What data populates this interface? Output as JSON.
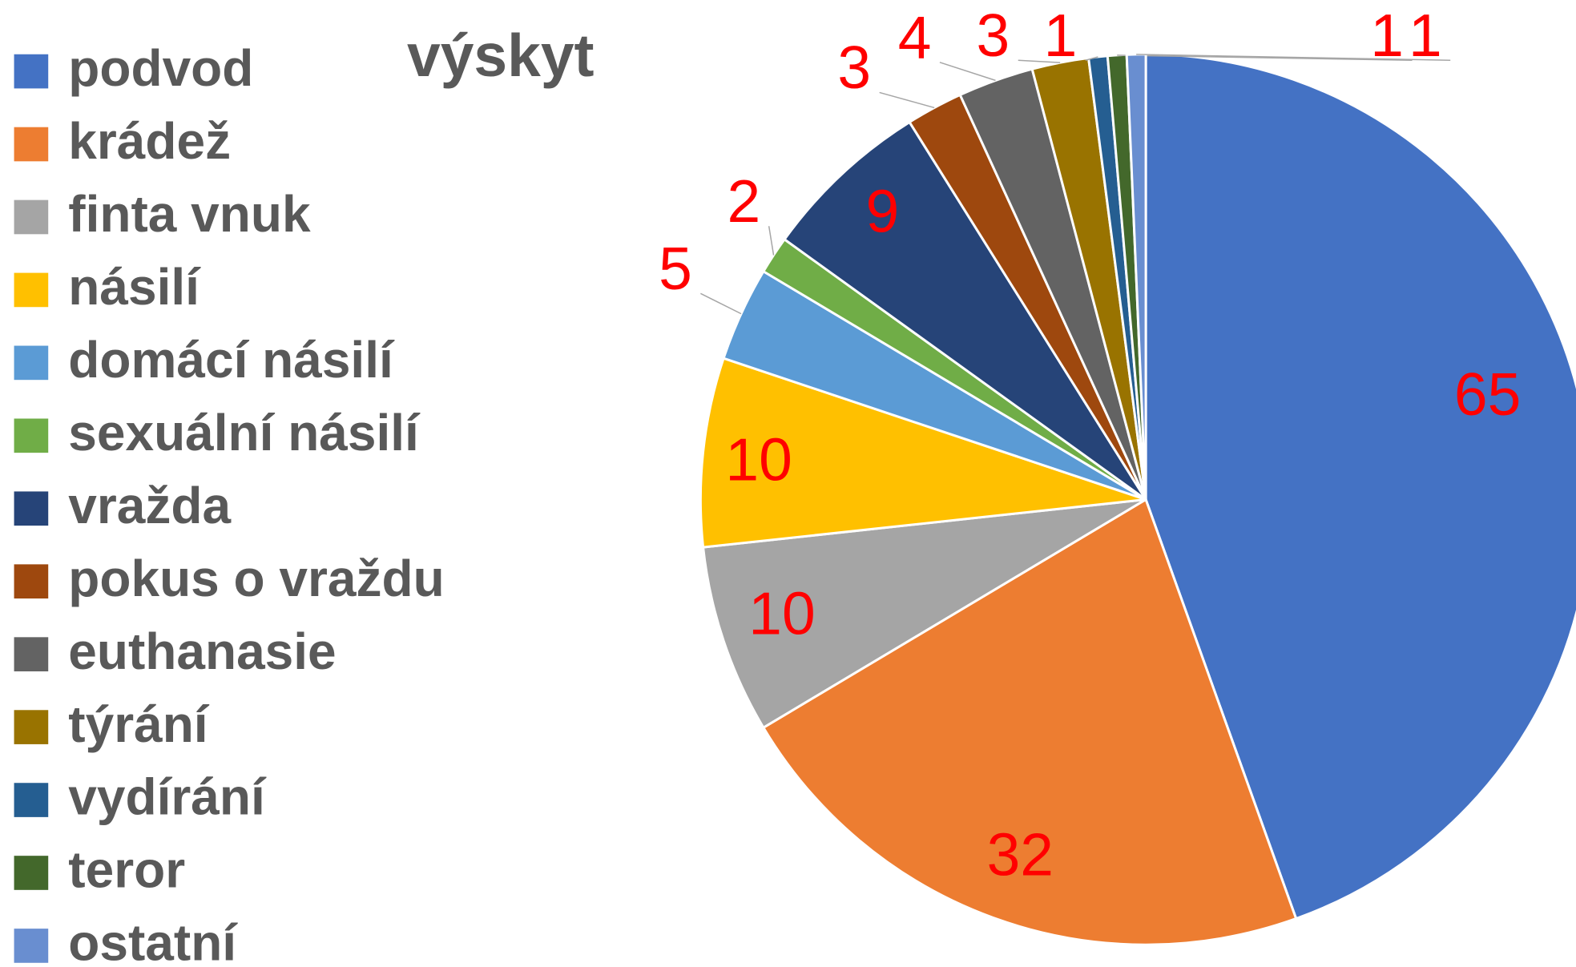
{
  "chart_data": {
    "type": "pie",
    "title": "výskyt",
    "categories": [
      "podvod",
      "krádež",
      "finta vnuk",
      "násilí",
      "domácí násilí",
      "sexuální násilí",
      "vražda",
      "pokus o vraždu",
      "euthanasie",
      "týrání",
      "vydírání",
      "teror",
      "ostatní"
    ],
    "values": [
      65,
      32,
      10,
      10,
      5,
      2,
      9,
      3,
      4,
      3,
      1,
      1,
      1
    ],
    "colors": [
      "#4472c4",
      "#ed7d31",
      "#a5a5a5",
      "#ffc000",
      "#5b9bd5",
      "#70ad47",
      "#264478",
      "#9e480e",
      "#636363",
      "#997300",
      "#255e91",
      "#43682b",
      "#698ed0"
    ],
    "legend": "left"
  }
}
